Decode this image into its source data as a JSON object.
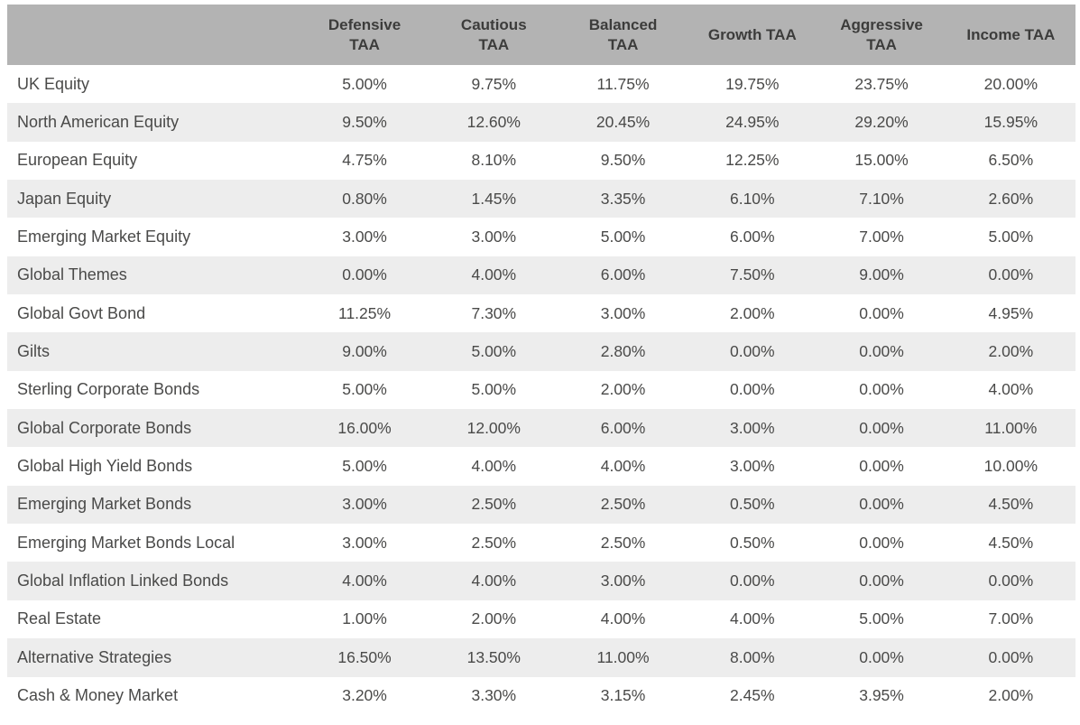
{
  "chart_data": {
    "type": "table",
    "title": "",
    "columns": [
      "",
      "Defensive TAA",
      "Cautious TAA",
      "Balanced TAA",
      "Growth TAA",
      "Aggressive TAA",
      "Income TAA"
    ],
    "rows": [
      {
        "label": "UK Equity",
        "values": [
          "5.00%",
          "9.75%",
          "11.75%",
          "19.75%",
          "23.75%",
          "20.00%"
        ]
      },
      {
        "label": "North American Equity",
        "values": [
          "9.50%",
          "12.60%",
          "20.45%",
          "24.95%",
          "29.20%",
          "15.95%"
        ]
      },
      {
        "label": "European Equity",
        "values": [
          "4.75%",
          "8.10%",
          "9.50%",
          "12.25%",
          "15.00%",
          "6.50%"
        ]
      },
      {
        "label": "Japan Equity",
        "values": [
          "0.80%",
          "1.45%",
          "3.35%",
          "6.10%",
          "7.10%",
          "2.60%"
        ]
      },
      {
        "label": "Emerging Market Equity",
        "values": [
          "3.00%",
          "3.00%",
          "5.00%",
          "6.00%",
          "7.00%",
          "5.00%"
        ]
      },
      {
        "label": "Global Themes",
        "values": [
          "0.00%",
          "4.00%",
          "6.00%",
          "7.50%",
          "9.00%",
          "0.00%"
        ]
      },
      {
        "label": "Global Govt Bond",
        "values": [
          "11.25%",
          "7.30%",
          "3.00%",
          "2.00%",
          "0.00%",
          "4.95%"
        ]
      },
      {
        "label": "Gilts",
        "values": [
          "9.00%",
          "5.00%",
          "2.80%",
          "0.00%",
          "0.00%",
          "2.00%"
        ]
      },
      {
        "label": "Sterling Corporate Bonds",
        "values": [
          "5.00%",
          "5.00%",
          "2.00%",
          "0.00%",
          "0.00%",
          "4.00%"
        ]
      },
      {
        "label": "Global Corporate Bonds",
        "values": [
          "16.00%",
          "12.00%",
          "6.00%",
          "3.00%",
          "0.00%",
          "11.00%"
        ]
      },
      {
        "label": "Global High Yield Bonds",
        "values": [
          "5.00%",
          "4.00%",
          "4.00%",
          "3.00%",
          "0.00%",
          "10.00%"
        ]
      },
      {
        "label": "Emerging Market Bonds",
        "values": [
          "3.00%",
          "2.50%",
          "2.50%",
          "0.50%",
          "0.00%",
          "4.50%"
        ]
      },
      {
        "label": "Emerging Market Bonds Local",
        "values": [
          "3.00%",
          "2.50%",
          "2.50%",
          "0.50%",
          "0.00%",
          "4.50%"
        ]
      },
      {
        "label": "Global Inflation Linked Bonds",
        "values": [
          "4.00%",
          "4.00%",
          "3.00%",
          "0.00%",
          "0.00%",
          "0.00%"
        ]
      },
      {
        "label": "Real Estate",
        "values": [
          "1.00%",
          "2.00%",
          "4.00%",
          "4.00%",
          "5.00%",
          "7.00%"
        ]
      },
      {
        "label": "Alternative Strategies",
        "values": [
          "16.50%",
          "13.50%",
          "11.00%",
          "8.00%",
          "0.00%",
          "0.00%"
        ]
      },
      {
        "label": "Cash & Money Market",
        "values": [
          "3.20%",
          "3.30%",
          "3.15%",
          "2.45%",
          "3.95%",
          "2.00%"
        ]
      }
    ]
  },
  "table": {
    "header": [
      {
        "label": "Defensive TAA",
        "lines": [
          "Defensive",
          "TAA"
        ]
      },
      {
        "label": "Cautious TAA",
        "lines": [
          "Cautious",
          "TAA"
        ]
      },
      {
        "label": "Balanced TAA",
        "lines": [
          "Balanced",
          "TAA"
        ]
      },
      {
        "label": "Growth TAA",
        "lines": [
          "Growth TAA"
        ]
      },
      {
        "label": "Aggressive TAA",
        "lines": [
          "Aggressive",
          "TAA"
        ]
      },
      {
        "label": "Income TAA",
        "lines": [
          "Income TAA"
        ]
      }
    ],
    "colors": {
      "header_bg": "#b3b3b3",
      "header_text": "#3c3c3b",
      "stripe_bg": "#ededed",
      "row_bg": "#ffffff",
      "body_text": "#4a4a49"
    }
  }
}
